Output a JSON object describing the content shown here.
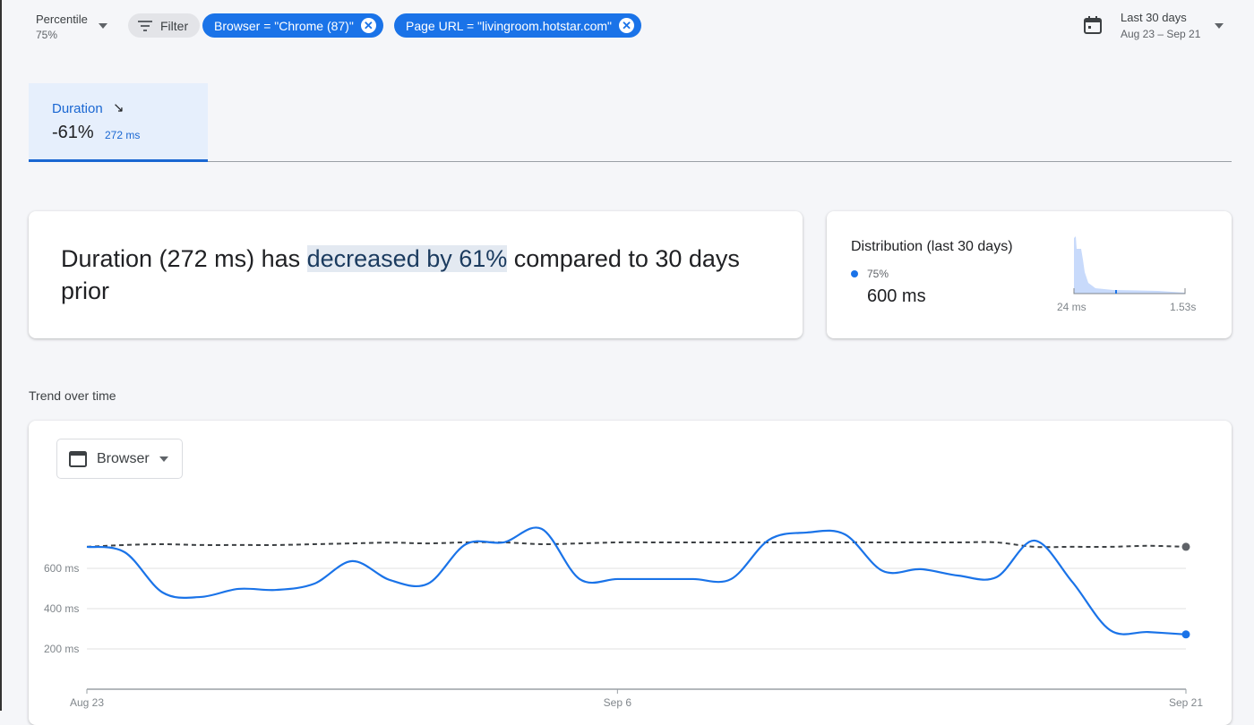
{
  "toolbar": {
    "percentile_label": "Percentile",
    "percentile_value": "75%",
    "filter_label": "Filter",
    "chips": [
      {
        "label": "Browser = \"Chrome (87)\""
      },
      {
        "label": "Page URL = \"livingroom.hotstar.com\""
      }
    ],
    "date_range_label": "Last 30 days",
    "date_range_value": "Aug 23 – Sep 21"
  },
  "tab": {
    "label": "Duration",
    "trend_icon": "arrow-down-right",
    "change": "-61%",
    "value": "272 ms"
  },
  "summary": {
    "prefix": "Duration (272 ms) has ",
    "highlight": "decreased by 61%",
    "suffix": " compared to 30 days prior"
  },
  "distribution": {
    "title": "Distribution (last 30 days)",
    "legend": "75%",
    "value": "600 ms",
    "min_label": "24 ms",
    "max_label": "1.53s",
    "accent": "#1a73e8"
  },
  "trend": {
    "title": "Trend over time",
    "dimension_select": "Browser"
  },
  "chart_data": {
    "type": "line",
    "x": [
      "Aug 23",
      "Aug 24",
      "Aug 25",
      "Aug 26",
      "Aug 27",
      "Aug 28",
      "Aug 29",
      "Aug 30",
      "Aug 31",
      "Sep 1",
      "Sep 2",
      "Sep 3",
      "Sep 4",
      "Sep 5",
      "Sep 6",
      "Sep 7",
      "Sep 8",
      "Sep 9",
      "Sep 10",
      "Sep 11",
      "Sep 12",
      "Sep 13",
      "Sep 14",
      "Sep 15",
      "Sep 16",
      "Sep 17",
      "Sep 18",
      "Sep 19",
      "Sep 20",
      "Sep 21"
    ],
    "x_ticks": [
      "Aug 23",
      "Sep 6",
      "Sep 21"
    ],
    "y_ticks": [
      "200 ms",
      "400 ms",
      "600 ms"
    ],
    "ylim": [
      0,
      900
    ],
    "grid": true,
    "series": [
      {
        "style": "solid",
        "color": "#1a73e8",
        "values": [
          707,
          680,
          480,
          458,
          498,
          493,
          524,
          636,
          542,
          524,
          720,
          729,
          796,
          547,
          547,
          547,
          547,
          547,
          742,
          778,
          769,
          587,
          596,
          564,
          556,
          738,
          533,
          293,
          284,
          272
        ]
      },
      {
        "style": "dashed",
        "color": "#3c4043",
        "values": [
          707,
          716,
          720,
          716,
          716,
          716,
          720,
          724,
          728,
          724,
          729,
          729,
          720,
          724,
          729,
          729,
          729,
          729,
          729,
          729,
          729,
          729,
          729,
          729,
          729,
          707,
          707,
          707,
          712,
          707
        ]
      }
    ]
  }
}
